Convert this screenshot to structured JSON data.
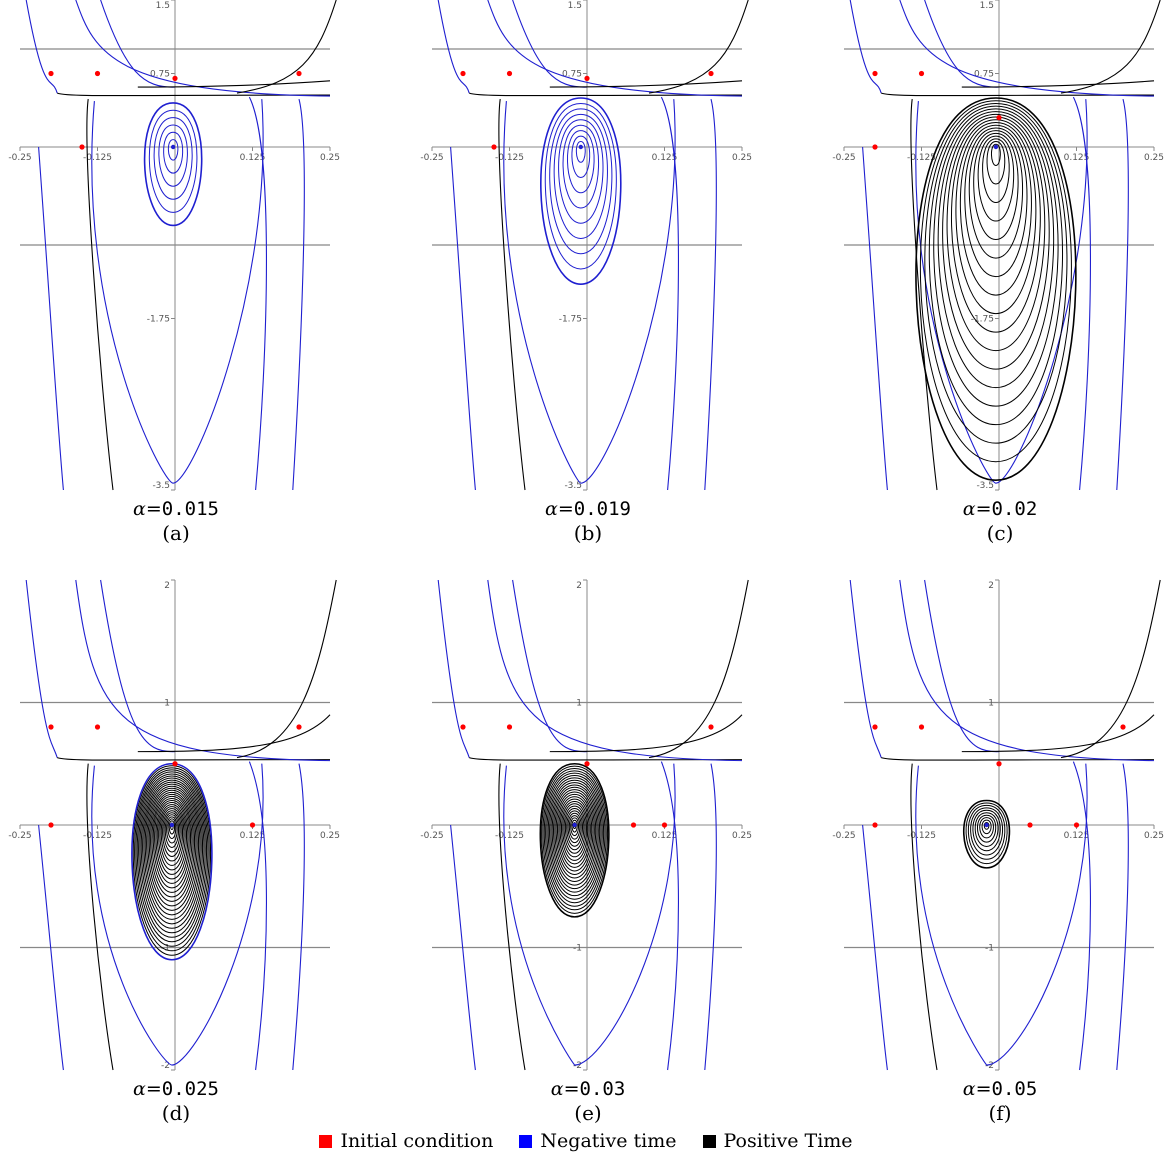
{
  "chart_data": [
    {
      "type": "line",
      "panel_label": "(a)",
      "alpha_symbol": "α=",
      "alpha_value": "0.015",
      "xlim": [
        -0.25,
        0.25
      ],
      "ylim": [
        -3.5,
        1.5
      ],
      "x_ticks": [
        "-0.25",
        "-0.125",
        "0.125",
        "0.25"
      ],
      "y_ticks": [
        "1.5",
        "0.75",
        "-1.75",
        "-3.5"
      ],
      "horizontal_lines": [
        1.0,
        -1.0
      ],
      "cycles": {
        "center": [
          -0.003,
          0.0
        ],
        "count": 6,
        "max_rx": 0.05,
        "max_ry": 0.8,
        "top": 0.45,
        "color": "blue",
        "outer_color": "blue"
      },
      "initial_conditions": [
        [
          -0.2,
          0.75
        ],
        [
          -0.125,
          0.75
        ],
        [
          0.0,
          0.7
        ],
        [
          0.2,
          0.75
        ],
        [
          -0.15,
          0.0
        ]
      ]
    },
    {
      "type": "line",
      "panel_label": "(b)",
      "alpha_symbol": "α=",
      "alpha_value": "0.019",
      "xlim": [
        -0.25,
        0.25
      ],
      "ylim": [
        -3.5,
        1.5
      ],
      "x_ticks": [
        "-0.25",
        "-0.125",
        "0.125",
        "0.25"
      ],
      "y_ticks": [
        "1.5",
        "0.75",
        "-1.75",
        "-3.5"
      ],
      "horizontal_lines": [
        1.0,
        -1.0
      ],
      "cycles": {
        "center": [
          -0.01,
          0.0
        ],
        "count": 9,
        "max_rx": 0.07,
        "max_ry": 1.4,
        "top": 0.5,
        "color": "blue",
        "outer_color": "blue"
      },
      "initial_conditions": [
        [
          -0.2,
          0.75
        ],
        [
          -0.125,
          0.75
        ],
        [
          0.0,
          0.7
        ],
        [
          0.2,
          0.75
        ],
        [
          -0.15,
          0.0
        ]
      ]
    },
    {
      "type": "line",
      "panel_label": "(c)",
      "alpha_symbol": "α=",
      "alpha_value": "0.02",
      "xlim": [
        -0.25,
        0.25
      ],
      "ylim": [
        -3.5,
        1.5
      ],
      "x_ticks": [
        "-0.25",
        "-0.125",
        "0.125",
        "0.25"
      ],
      "y_ticks": [
        "1.5",
        "0.75",
        "-1.75",
        "-3.5"
      ],
      "horizontal_lines": [
        1.0,
        -1.0
      ],
      "cycles": {
        "center": [
          -0.005,
          0.0
        ],
        "count": 18,
        "max_rx": 0.14,
        "max_ry": 3.4,
        "top": 0.5,
        "color": "black",
        "outer_color": "black"
      },
      "initial_conditions": [
        [
          -0.2,
          0.75
        ],
        [
          -0.125,
          0.75
        ],
        [
          0.0,
          0.3
        ],
        [
          -0.2,
          0.0
        ]
      ]
    },
    {
      "type": "line",
      "panel_label": "(d)",
      "alpha_symbol": "α=",
      "alpha_value": "0.025",
      "xlim": [
        -0.25,
        0.25
      ],
      "ylim": [
        -2,
        2
      ],
      "x_ticks": [
        "-0.25",
        "-0.125",
        "0.125",
        "0.25"
      ],
      "y_ticks": [
        "2",
        "1",
        "-1",
        "-2"
      ],
      "horizontal_lines": [
        1.0,
        -1.0
      ],
      "cycles": {
        "center": [
          -0.005,
          0.0
        ],
        "count": 30,
        "max_rx": 0.07,
        "max_ry": 1.1,
        "top": 0.5,
        "color": "black",
        "outer_color": "blue"
      },
      "initial_conditions": [
        [
          -0.2,
          0.8
        ],
        [
          -0.125,
          0.8
        ],
        [
          0.0,
          0.5
        ],
        [
          0.2,
          0.8
        ],
        [
          -0.2,
          0.0
        ],
        [
          0.125,
          0.0
        ]
      ]
    },
    {
      "type": "line",
      "panel_label": "(e)",
      "alpha_symbol": "α=",
      "alpha_value": "0.03",
      "xlim": [
        -0.25,
        0.25
      ],
      "ylim": [
        -2,
        2
      ],
      "x_ticks": [
        "-0.25",
        "-0.125",
        "0.125",
        "0.25"
      ],
      "y_ticks": [
        "2",
        "1",
        "-1",
        "-2"
      ],
      "horizontal_lines": [
        1.0,
        -1.0
      ],
      "cycles": {
        "center": [
          -0.02,
          0.0
        ],
        "count": 26,
        "max_rx": 0.06,
        "max_ry": 0.75,
        "top": 0.5,
        "color": "black",
        "outer_color": "black"
      },
      "initial_conditions": [
        [
          -0.2,
          0.8
        ],
        [
          -0.125,
          0.8
        ],
        [
          0.0,
          0.5
        ],
        [
          0.2,
          0.8
        ],
        [
          0.075,
          0.0
        ],
        [
          0.125,
          0.0
        ]
      ]
    },
    {
      "type": "line",
      "panel_label": "(f)",
      "alpha_symbol": "α=",
      "alpha_value": "0.05",
      "xlim": [
        -0.25,
        0.25
      ],
      "ylim": [
        -2,
        2
      ],
      "x_ticks": [
        "-0.25",
        "-0.125",
        "0.125",
        "0.25"
      ],
      "y_ticks": [
        "2",
        "1",
        "-1",
        "-2"
      ],
      "horizontal_lines": [
        1.0,
        -1.0
      ],
      "cycles": {
        "center": [
          -0.02,
          0.0
        ],
        "count": 10,
        "max_rx": 0.04,
        "max_ry": 0.35,
        "top": 0.2,
        "color": "black",
        "outer_color": "black"
      },
      "initial_conditions": [
        [
          -0.2,
          0.8
        ],
        [
          -0.125,
          0.8
        ],
        [
          0.0,
          0.5
        ],
        [
          0.2,
          0.8
        ],
        [
          0.05,
          0.0
        ],
        [
          0.125,
          0.0
        ],
        [
          -0.2,
          0.0
        ]
      ]
    }
  ],
  "legend": {
    "items": [
      {
        "label": "Initial condition",
        "color": "#ff0000"
      },
      {
        "label": "Negative time",
        "color": "#0000ff"
      },
      {
        "label": "Positive Time",
        "color": "#000000"
      }
    ]
  },
  "colors": {
    "blue": "#1f1fd0",
    "black": "#000000",
    "axis": "#888888",
    "ic": "#ff0000"
  }
}
